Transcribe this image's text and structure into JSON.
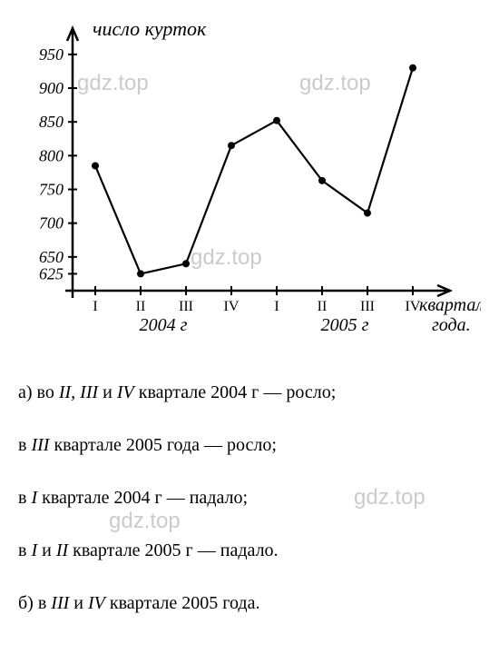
{
  "chart": {
    "type": "line",
    "y_axis_label": "число курток",
    "x_axis_label": "квартал года.",
    "y_ticks": [
      "625",
      "650",
      "700",
      "750",
      "800",
      "850",
      "900",
      "950"
    ],
    "x_ticks": [
      "I",
      "II",
      "III",
      "IV",
      "I",
      "II",
      "III",
      "IV"
    ],
    "x_group_labels": [
      "2004 г",
      "2005 г"
    ],
    "points": [
      {
        "x": 85,
        "y": 785
      },
      {
        "x": 135,
        "y": 625
      },
      {
        "x": 185,
        "y": 640
      },
      {
        "x": 235,
        "y": 815
      },
      {
        "x": 285,
        "y": 852
      },
      {
        "x": 335,
        "y": 763
      },
      {
        "x": 385,
        "y": 715
      },
      {
        "x": 435,
        "y": 930
      }
    ],
    "y_min": 600,
    "y_max": 970,
    "stroke_color": "#000000",
    "stroke_width": 2.2,
    "marker_radius": 4,
    "axis_stroke": "#000000",
    "axis_width": 2.5,
    "tick_font_size": 18,
    "label_font_style": "italic"
  },
  "watermarks": {
    "w1": "gdz.top",
    "w2": "gdz.top",
    "w3": "gdz.top",
    "w4": "gdz.top",
    "w5": "gdz.top"
  },
  "text": {
    "line_a_prefix": "а) во ",
    "line_a_roman": "II, III",
    "line_a_and": " и ",
    "line_a_roman2": "IV",
    "line_a_suffix": " квартале 2004 г — росло;",
    "line_b_prefix": "в ",
    "line_b_roman": "III",
    "line_b_suffix": " квартале 2005 года — росло;",
    "line_c_prefix": "в ",
    "line_c_roman": "I",
    "line_c_suffix": " квартале 2004 г — падало;",
    "line_d_prefix": "в ",
    "line_d_roman": "I",
    "line_d_and": " и ",
    "line_d_roman2": "II",
    "line_d_suffix": " квартале 2005 г — падало.",
    "line_e_prefix": "б) в ",
    "line_e_roman": "III",
    "line_e_and": " и ",
    "line_e_roman2": "IV",
    "line_e_suffix": " квартале 2005 года."
  }
}
